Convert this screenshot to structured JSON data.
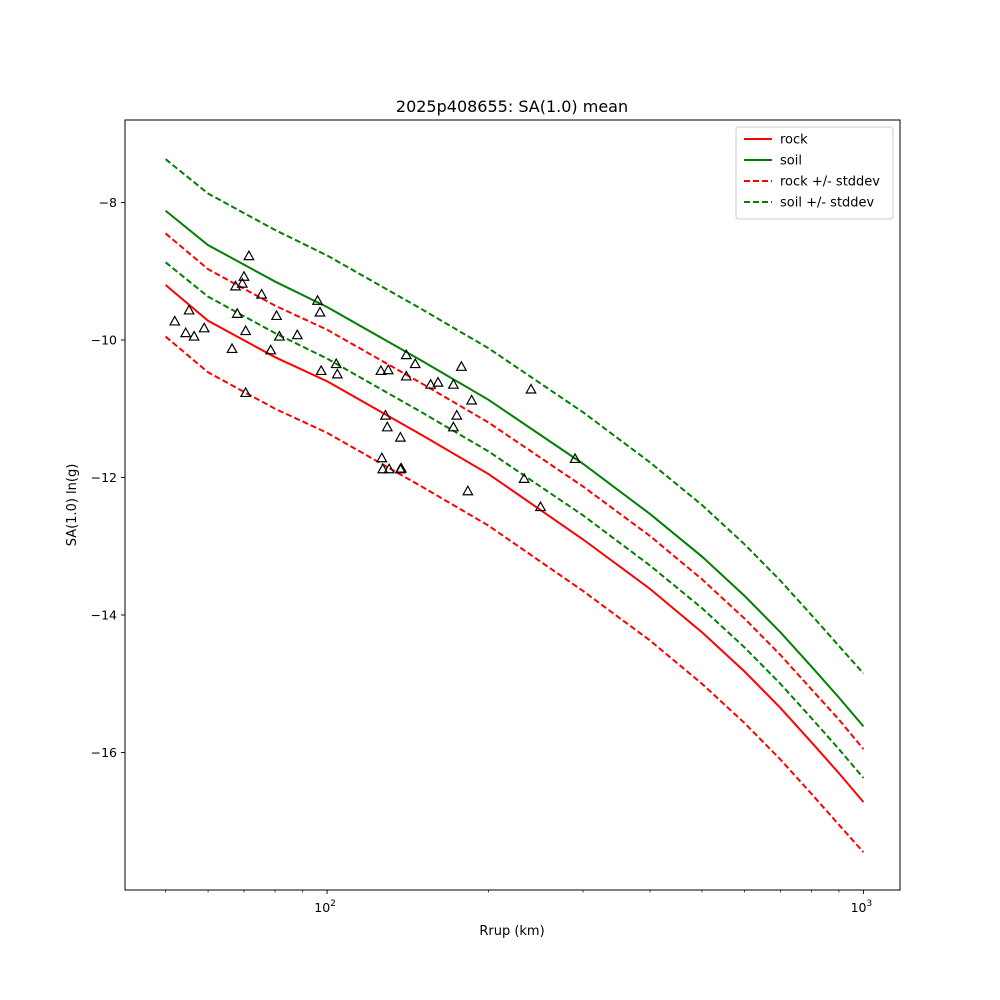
{
  "chart_data": {
    "type": "scatter",
    "title": "2025p408655: SA(1.0) mean",
    "xlabel": "Rrup (km)",
    "ylabel": "SA(1.0) ln(g)",
    "xscale": "log",
    "xlim": [
      42,
      1170
    ],
    "ylim": [
      -18.0,
      -6.8
    ],
    "grid": false,
    "legend_placement": "top-right",
    "xticks": [
      {
        "value": 100,
        "base": "10",
        "exp": "2"
      },
      {
        "value": 1000,
        "base": "10",
        "exp": "3"
      }
    ],
    "yticks": [
      {
        "value": -8,
        "label": "−8"
      },
      {
        "value": -10,
        "label": "−10"
      },
      {
        "value": -12,
        "label": "−12"
      },
      {
        "value": -14,
        "label": "−14"
      },
      {
        "value": -16,
        "label": "−16"
      }
    ],
    "series": [
      {
        "name": "rock",
        "color": "#ff0000",
        "dash": "solid",
        "x": [
          50,
          60,
          80,
          100,
          150,
          200,
          300,
          400,
          500,
          600,
          700,
          800,
          900,
          1000
        ],
        "y": [
          -9.2,
          -9.72,
          -10.25,
          -10.6,
          -11.38,
          -11.95,
          -12.9,
          -13.62,
          -14.25,
          -14.82,
          -15.35,
          -15.85,
          -16.3,
          -16.72
        ]
      },
      {
        "name": "soil",
        "color": "#008000",
        "dash": "solid",
        "x": [
          50,
          60,
          80,
          100,
          150,
          200,
          300,
          400,
          500,
          600,
          700,
          800,
          900,
          1000
        ],
        "y": [
          -8.12,
          -8.62,
          -9.15,
          -9.52,
          -10.3,
          -10.87,
          -11.8,
          -12.53,
          -13.15,
          -13.72,
          -14.25,
          -14.75,
          -15.2,
          -15.62
        ]
      },
      {
        "name": "rock +/- stddev",
        "color": "#ff0000",
        "dash": "dashed",
        "x": [
          50,
          60,
          80,
          100,
          150,
          200,
          300,
          400,
          500,
          600,
          700,
          800,
          900,
          1000
        ],
        "y": [
          -8.45,
          -8.97,
          -9.5,
          -9.85,
          -10.63,
          -11.2,
          -12.13,
          -12.85,
          -13.48,
          -14.05,
          -14.58,
          -15.08,
          -15.52,
          -15.95
        ]
      },
      {
        "name": "",
        "color": "#ff0000",
        "dash": "dashed",
        "x": [
          50,
          60,
          80,
          100,
          150,
          200,
          300,
          400,
          500,
          600,
          700,
          800,
          900,
          1000
        ],
        "y": [
          -9.95,
          -10.47,
          -11.0,
          -11.35,
          -12.13,
          -12.7,
          -13.65,
          -14.37,
          -15.0,
          -15.57,
          -16.1,
          -16.6,
          -17.05,
          -17.45
        ]
      },
      {
        "name": "soil +/- stddev",
        "color": "#008000",
        "dash": "dashed",
        "x": [
          50,
          60,
          80,
          100,
          150,
          200,
          300,
          400,
          500,
          600,
          700,
          800,
          900,
          1000
        ],
        "y": [
          -7.37,
          -7.87,
          -8.4,
          -8.77,
          -9.55,
          -10.12,
          -11.05,
          -11.78,
          -12.4,
          -12.97,
          -13.5,
          -14.0,
          -14.45,
          -14.85
        ]
      },
      {
        "name": "",
        "color": "#008000",
        "dash": "dashed",
        "x": [
          50,
          60,
          80,
          100,
          150,
          200,
          300,
          400,
          500,
          600,
          700,
          800,
          900,
          1000
        ],
        "y": [
          -8.87,
          -9.37,
          -9.9,
          -10.27,
          -11.05,
          -11.62,
          -12.55,
          -13.28,
          -13.9,
          -14.47,
          -15.0,
          -15.5,
          -15.95,
          -16.37
        ]
      }
    ],
    "observations": {
      "marker": "triangle",
      "color": "#000000",
      "points": [
        [
          52,
          -9.73
        ],
        [
          54.5,
          -9.9
        ],
        [
          55.3,
          -9.57
        ],
        [
          56.5,
          -9.95
        ],
        [
          59,
          -9.83
        ],
        [
          66.5,
          -10.13
        ],
        [
          67.5,
          -9.22
        ],
        [
          68,
          -9.62
        ],
        [
          69.5,
          -9.18
        ],
        [
          70,
          -9.08
        ],
        [
          70.5,
          -9.87
        ],
        [
          70.5,
          -10.77
        ],
        [
          71.5,
          -8.78
        ],
        [
          75.5,
          -9.34
        ],
        [
          78.5,
          -10.15
        ],
        [
          80.5,
          -9.65
        ],
        [
          81.5,
          -9.95
        ],
        [
          88,
          -9.93
        ],
        [
          96,
          -9.43
        ],
        [
          97,
          -9.6
        ],
        [
          97.5,
          -10.45
        ],
        [
          104,
          -10.35
        ],
        [
          104.5,
          -10.5
        ],
        [
          126,
          -10.45
        ],
        [
          126.5,
          -11.72
        ],
        [
          127,
          -11.88
        ],
        [
          128.5,
          -11.1
        ],
        [
          129.5,
          -11.27
        ],
        [
          130,
          -10.44
        ],
        [
          130.5,
          -11.88
        ],
        [
          137,
          -11.42
        ],
        [
          137,
          -11.88
        ],
        [
          137.5,
          -11.87
        ],
        [
          140.5,
          -10.22
        ],
        [
          140.5,
          -10.53
        ],
        [
          146,
          -10.35
        ],
        [
          156,
          -10.65
        ],
        [
          161,
          -10.62
        ],
        [
          172,
          -10.65
        ],
        [
          172,
          -11.27
        ],
        [
          174.5,
          -11.1
        ],
        [
          178,
          -10.39
        ],
        [
          183,
          -12.2
        ],
        [
          186,
          -10.88
        ],
        [
          233,
          -12.02
        ],
        [
          240,
          -10.72
        ],
        [
          250,
          -12.43
        ],
        [
          290,
          -11.73
        ]
      ]
    }
  }
}
